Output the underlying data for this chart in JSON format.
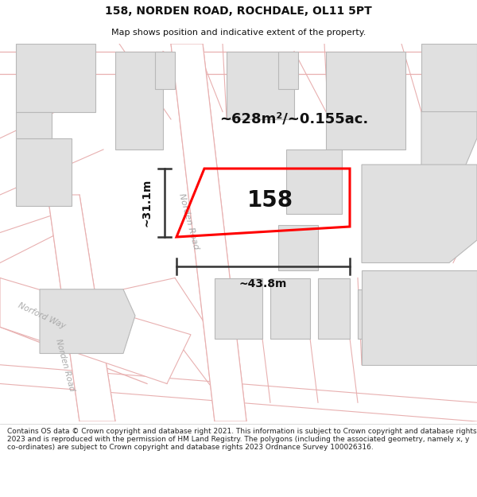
{
  "title": "158, NORDEN ROAD, ROCHDALE, OL11 5PT",
  "subtitle": "Map shows position and indicative extent of the property.",
  "footer": "Contains OS data © Crown copyright and database right 2021. This information is subject to Crown copyright and database rights 2023 and is reproduced with the permission of HM Land Registry. The polygons (including the associated geometry, namely x, y co-ordinates) are subject to Crown copyright and database rights 2023 Ordnance Survey 100026316.",
  "area_label": "~628m²/~0.155ac.",
  "width_label": "~43.8m",
  "height_label": "~31.1m",
  "plot_number": "158",
  "map_bg": "#f7f7f7",
  "road_outline": "#e8b0b0",
  "building_fill": "#e0e0e0",
  "building_edge": "#b8b8b8",
  "plot_color": "#ff0000",
  "dim_line_color": "#333333",
  "text_color": "#111111",
  "road_label_color": "#aaaaaa",
  "title_fontsize": 10,
  "subtitle_fontsize": 8,
  "footer_fontsize": 6.5
}
